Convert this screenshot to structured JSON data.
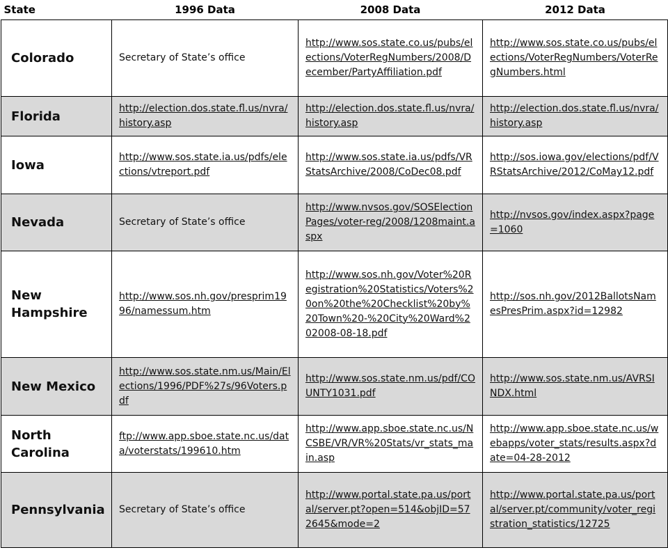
{
  "table": {
    "header": [
      "State",
      "1996 Data",
      "2008 Data",
      "2012 Data"
    ],
    "rows": [
      [
        "Colorado",
        "Secretary of State’s office",
        "http://www.sos.state.co.us/pubs/elections/VoterRegNumbers/2008/December/PartyAffiliation.pdf",
        "http://www.sos.state.co.us/pubs/elections/VoterRegNumbers/VoterRegNumbers.html"
      ],
      [
        "Florida",
        "http://election.dos.state.fl.us/nvra/history.asp",
        "http://election.dos.state.fl.us/nvra/history.asp",
        "http://election.dos.state.fl.us/nvra/history.asp"
      ],
      [
        "Iowa",
        "http://www.sos.state.ia.us/pdfs/elections/vtreport.pdf",
        "http://www.sos.state.ia.us/pdfs/VRStatsArchive/2008/CoDec08.pdf",
        "http://sos.iowa.gov/elections/pdf/VRStatsArchive/2012/CoMay12.pdf"
      ],
      [
        "Nevada",
        "Secretary of State’s office",
        "http://www.nvsos.gov/SOSElectionPages/voter-reg/2008/1208maint.aspx",
        "http://nvsos.gov/index.aspx?page=1060"
      ],
      [
        "New Hampshire",
        "http://www.sos.nh.gov/presprim1996/namessum.htm",
        "http://www.sos.nh.gov/Voter%20Registration%20Statistics/Voters%20on%20the%20Checklist%20by%20Town%20-%20City%20Ward%202008-08-18.pdf",
        "http://sos.nh.gov/2012BallotsNamesPresPrim.aspx?id=12982"
      ],
      [
        "New Mexico",
        "http://www.sos.state.nm.us/Main/Elections/1996/PDF%27s/96Voters.pdf",
        "http://www.sos.state.nm.us/pdf/COUNTY1031.pdf",
        "http://www.sos.state.nm.us/AVRSINDX.html"
      ],
      [
        "North Carolina",
        "ftp://www.app.sboe.state.nc.us/data/voterstats/199610.htm",
        "http://www.app.sboe.state.nc.us/NCSBE/VR/VR%20Stats/vr_stats_main.asp",
        "http://www.app.sboe.state.nc.us/webapps/voter_stats/results.aspx?date=04-28-2012"
      ],
      [
        "Pennsylvania",
        "Secretary of State’s office",
        "http://www.portal.state.pa.us/portal/server.pt?open=514&objID=572645&mode=2",
        "http://www.portal.state.pa.us/portal/server.pt/community/voter_registration_statistics/12725"
      ]
    ]
  }
}
